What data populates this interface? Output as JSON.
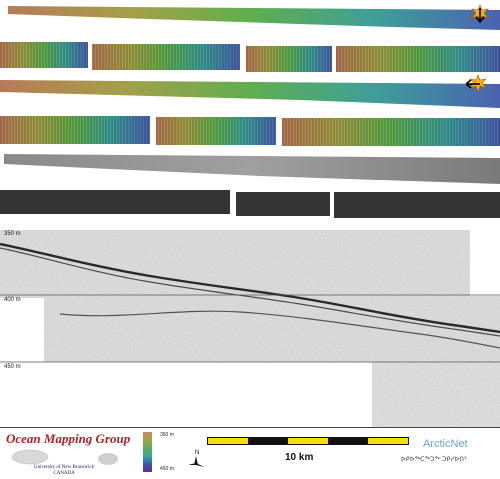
{
  "profile": {
    "depth_labels": [
      "350 m",
      "400 m",
      "450 m"
    ]
  },
  "legend": {
    "top_label": "350 m",
    "bottom_label": "450 m",
    "colors": [
      "#c48a6a",
      "#a7a04a",
      "#5ab050",
      "#3aa6a0",
      "#3c5ab0",
      "#6a2a8a"
    ]
  },
  "scalebar": {
    "label": "10 km",
    "segments": [
      "yellow",
      "black",
      "yellow",
      "black",
      "yellow"
    ]
  },
  "logos": {
    "omg_title": "Ocean Mapping Group",
    "omg_university": "University of New Brunswick",
    "omg_country": "CANADA",
    "arcticnet": "ArcticNet",
    "arcticnet_syllabics": "ᐅᑭᐅᖅᑕᖅᑐᖅ ᑐᑭᓯᐅᑎᑦ"
  },
  "compass": {
    "label": "N"
  },
  "colors": {
    "border": "#555555",
    "omg_red": "#b22222",
    "arcticnet_blue": "#6aa3c8",
    "scalebar_yellow": "#f2e200"
  }
}
